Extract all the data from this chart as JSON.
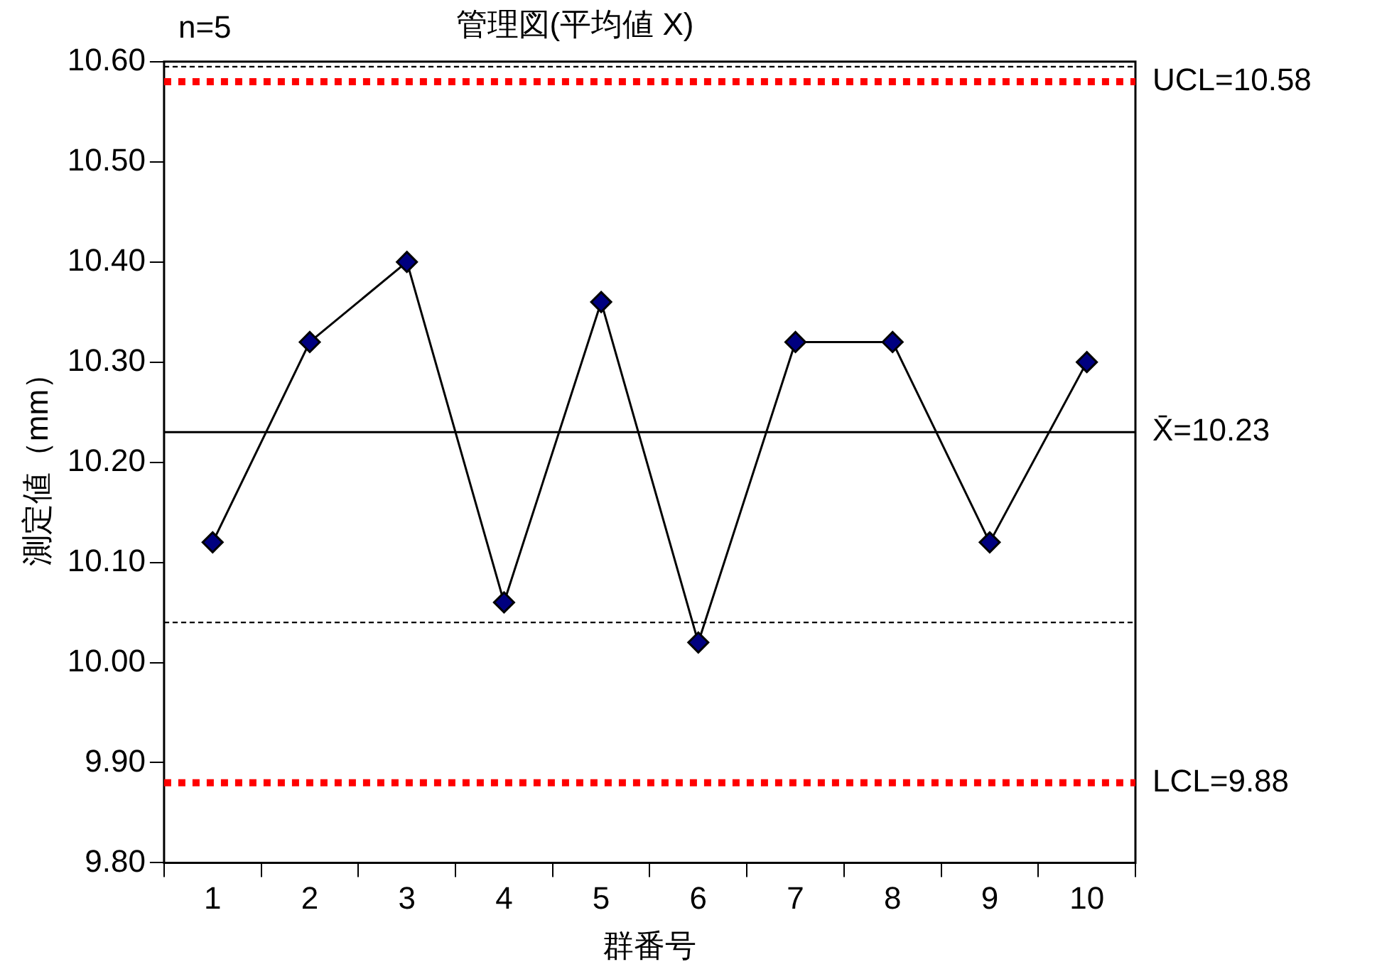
{
  "chart_data": {
    "type": "line",
    "title": "管理図(平均値 X)",
    "xlabel": "群番号",
    "ylabel": "測定値（mm）",
    "categories": [
      "1",
      "2",
      "3",
      "4",
      "5",
      "6",
      "7",
      "8",
      "9",
      "10"
    ],
    "series": [
      {
        "color": "#000080",
        "values": [
          10.12,
          10.32,
          10.4,
          10.06,
          10.36,
          10.02,
          10.32,
          10.32,
          10.12,
          10.3
        ]
      }
    ],
    "ylim": [
      9.8,
      10.6
    ],
    "yticks": [
      {
        "value": 9.8,
        "label": "9.80"
      },
      {
        "value": 9.9,
        "label": "9.90"
      },
      {
        "value": 10.0,
        "label": "10.00"
      },
      {
        "value": 10.1,
        "label": "10.10"
      },
      {
        "value": 10.2,
        "label": "10.20"
      },
      {
        "value": 10.3,
        "label": "10.30"
      },
      {
        "value": 10.4,
        "label": "10.40"
      },
      {
        "value": 10.5,
        "label": "10.50"
      },
      {
        "value": 10.6,
        "label": "10.60"
      }
    ],
    "ref_lines": [
      {
        "axis": "y",
        "value": 10.58,
        "label": "UCL=10.58",
        "color": "#ff0000",
        "line_style": "dotted"
      },
      {
        "axis": "y",
        "value": 10.23,
        "label": "X̄=10.23",
        "color": "#000000",
        "line_style": "solid"
      },
      {
        "axis": "y",
        "value": 9.88,
        "label": "LCL=9.88",
        "color": "#ff0000",
        "line_style": "dotted"
      },
      {
        "axis": "y",
        "value": 10.595,
        "color": "#000000",
        "line_style": "dashed"
      },
      {
        "axis": "y",
        "value": 10.04,
        "color": "#000000",
        "line_style": "dashed"
      }
    ],
    "annotations": [
      "n=5"
    ],
    "grid": false,
    "legend": false,
    "marker": "diamond",
    "line_style": "solid"
  }
}
